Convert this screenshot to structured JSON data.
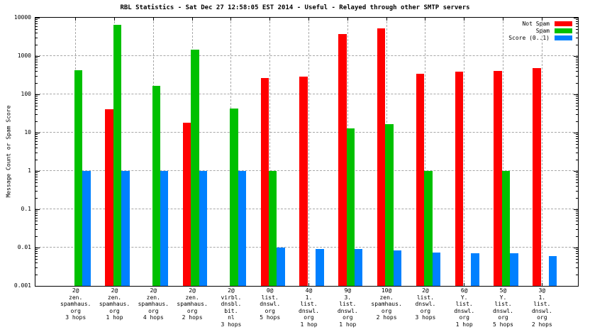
{
  "chart_data": {
    "type": "bar",
    "title": "RBL Statistics - Sat Dec 27 12:58:05 EST 2014 - Useful - Relayed through other SMTP servers",
    "xlabel": "",
    "ylabel": "Message Count or Spam Score",
    "y_scale": "log",
    "ylim": [
      0.001,
      10000
    ],
    "yticks": [
      "10000",
      "1000",
      "100",
      "10",
      "1",
      "0.1",
      "0.01",
      "0.001"
    ],
    "grid": true,
    "legend_position": "top-right-inside",
    "categories": [
      [
        "2@",
        "zen.",
        "spamhaus.",
        "org",
        "3 hops"
      ],
      [
        "2@",
        "zen.",
        "spamhaus.",
        "org",
        "1 hop"
      ],
      [
        "2@",
        "zen.",
        "spamhaus.",
        "org",
        "4 hops"
      ],
      [
        "2@",
        "zen.",
        "spamhaus.",
        "org",
        "2 hops"
      ],
      [
        "2@",
        "virbl.",
        "dnsbl.",
        "bit.",
        "nl",
        "3 hops"
      ],
      [
        "0@",
        "list.",
        "dnswl.",
        "org",
        "5 hops"
      ],
      [
        "4@",
        "1.",
        "list.",
        "dnswl.",
        "org",
        "1 hop"
      ],
      [
        "9@",
        "3.",
        "list.",
        "dnswl.",
        "org",
        "1 hop"
      ],
      [
        "10@",
        "zen.",
        "spamhaus.",
        "org",
        "2 hops"
      ],
      [
        "2@",
        "list.",
        "dnswl.",
        "org",
        "3 hops"
      ],
      [
        "6@",
        "Y.",
        "list.",
        "dnswl.",
        "org",
        "1 hop"
      ],
      [
        "5@",
        "Y.",
        "list.",
        "dnswl.",
        "org",
        "5 hops"
      ],
      [
        "3@",
        "1.",
        "list.",
        "dnswl.",
        "org",
        "2 hops"
      ]
    ],
    "series": [
      {
        "name": "Not Spam",
        "key": "not-spam",
        "color": "#ff0000",
        "values": [
          null,
          40,
          null,
          18,
          null,
          270,
          290,
          3800,
          5200,
          350,
          390,
          400,
          480
        ]
      },
      {
        "name": "Spam",
        "key": "spam",
        "color": "#00c000",
        "values": [
          420,
          6500,
          170,
          1450,
          43,
          1,
          null,
          13,
          17,
          1,
          null,
          1,
          null
        ]
      },
      {
        "name": "Score (0..1)",
        "key": "score",
        "color": "#0080ff",
        "values": [
          1,
          1,
          1,
          1,
          1,
          0.01,
          0.009,
          0.009,
          0.0085,
          0.0075,
          0.007,
          0.007,
          0.006
        ]
      }
    ]
  }
}
